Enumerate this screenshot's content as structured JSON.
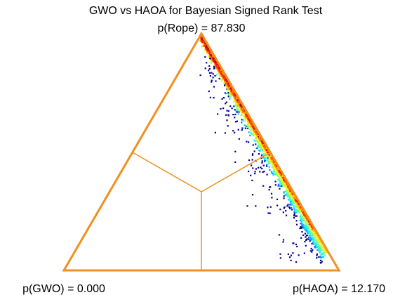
{
  "chart_data": {
    "type": "scatter",
    "title": "GWO vs HAOA for Bayesian Signed Rank Test",
    "coordinate_system": "barycentric-ternary",
    "vertices": [
      {
        "key": "rope",
        "label": "p(Rope) = 87.830",
        "value": 87.83
      },
      {
        "key": "gwo",
        "label": "p(GWO) = 0.000",
        "value": 0.0
      },
      {
        "key": "haoa",
        "label": "p(HAOA) = 12.170",
        "value": 12.17
      }
    ],
    "colormap": "jet",
    "colors": {
      "triangle": "#f0901e",
      "inner_lines": "#f0901e",
      "low_density": "#00008f",
      "high_density": "#800000"
    },
    "distribution": {
      "description_values": "posterior samples lie near the Rope–HAOA edge",
      "gwo_share_range": [
        0.0,
        0.3
      ],
      "haoa_share_range": [
        0.0,
        0.95
      ]
    }
  }
}
